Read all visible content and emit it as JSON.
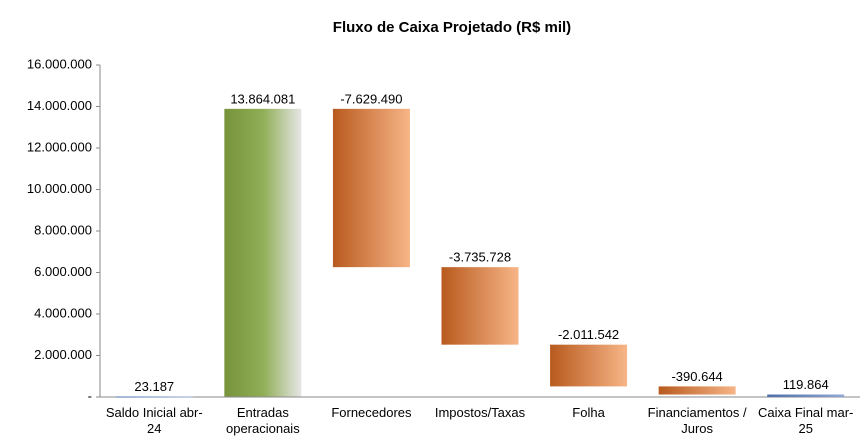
{
  "chart_data": {
    "type": "waterfall",
    "title": "Fluxo de Caixa Projetado (R$ mil)",
    "categories": [
      "Saldo Inicial abr-24",
      "Entradas operacionais",
      "Fornecedores",
      "Impostos/Taxas",
      "Folha",
      "Financiamentos / Juros",
      "Caixa Final mar-25"
    ],
    "values": [
      23187,
      13864081,
      -7629490,
      -3735728,
      -2011542,
      -390644,
      119864
    ],
    "value_labels": [
      "23.187",
      "13.864.081",
      "-7.629.490",
      "-3.735.728",
      "-2.011.542",
      "-390.644",
      "119.864"
    ],
    "colors": [
      "#4f6fa8",
      "#77933c",
      "#b85a1e",
      "#b85a1e",
      "#b85a1e",
      "#b85a1e",
      "#4f6fa8"
    ],
    "ylim": [
      0,
      16000000
    ],
    "yticks": [
      {
        "value": 0,
        "label": "-"
      },
      {
        "value": 2000000,
        "label": "2.000.000"
      },
      {
        "value": 4000000,
        "label": "4.000.000"
      },
      {
        "value": 6000000,
        "label": "6.000.000"
      },
      {
        "value": 8000000,
        "label": "8.000.000"
      },
      {
        "value": 10000000,
        "label": "10.000.000"
      },
      {
        "value": 12000000,
        "label": "12.000.000"
      },
      {
        "value": 14000000,
        "label": "14.000.000"
      },
      {
        "value": 16000000,
        "label": "16.000.000"
      }
    ],
    "grid": false
  }
}
